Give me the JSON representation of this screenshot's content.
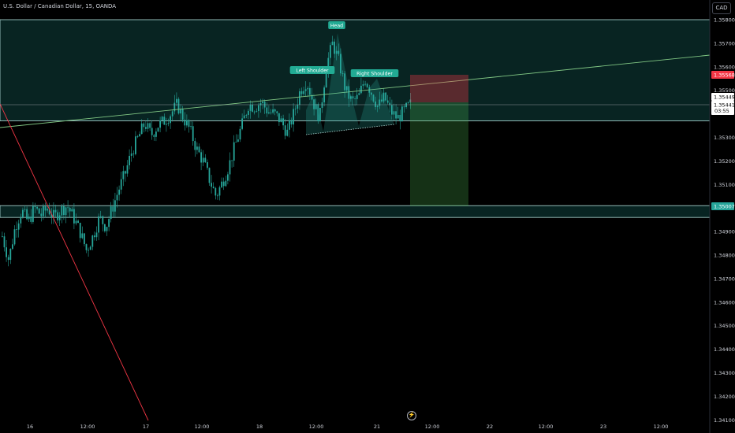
{
  "header": {
    "symbol_title": "U.S. Dollar / Canadian Dollar, 15, OANDA",
    "currency_button": "CAD"
  },
  "colors": {
    "background": "#000000",
    "candle": "#26a69a",
    "zone_fill": "#26a69a",
    "zone_border": "#b2dfdb",
    "trendline_up": "#81c784",
    "trendline_down": "#f23645",
    "stop_fill": "#f23645",
    "target_fill": "#4caf50",
    "stop_label": "#f23645",
    "target_label": "#26a69a",
    "current_label": "#ffffff"
  },
  "chart_data": {
    "type": "candlestick",
    "y_axis": {
      "range": [
        1.341,
        1.3585
      ],
      "ticks": [
        "1.35800",
        "1.35700",
        "1.35600",
        "1.35500",
        "1.35300",
        "1.35200",
        "1.35100",
        "1.34900",
        "1.34800",
        "1.34700",
        "1.34600",
        "1.34500",
        "1.34400",
        "1.34300",
        "1.34200",
        "1.34100"
      ],
      "price_labels": {
        "stop": "1.35568",
        "entry": "1.35449",
        "current_price": "1.35441",
        "countdown": "03:55",
        "target": "1.35007"
      }
    },
    "x_axis": {
      "ticks": [
        "16",
        "12:00",
        "17",
        "12:00",
        "18",
        "12:00",
        "21",
        "12:00",
        "22",
        "12:00",
        "23",
        "12:00"
      ]
    },
    "zones": [
      {
        "name": "resistance",
        "top": 1.358,
        "bottom": 1.3537
      },
      {
        "name": "support",
        "top": 1.3501,
        "bottom": 1.3496
      }
    ],
    "annotations": [
      "Left Shoulder",
      "Head",
      "Right Shoulder"
    ],
    "path": [
      1.3488,
      1.3478,
      1.3492,
      1.3499,
      1.3494,
      1.35,
      1.3497,
      1.35,
      1.3496,
      1.3499,
      1.3501,
      1.3496,
      1.349,
      1.3482,
      1.3488,
      1.3496,
      1.3492,
      1.35,
      1.3508,
      1.3515,
      1.3524,
      1.353,
      1.3536,
      1.3531,
      1.3535,
      1.3537,
      1.354,
      1.3544,
      1.3538,
      1.3533,
      1.3525,
      1.352,
      1.3512,
      1.3505,
      1.3511,
      1.3518,
      1.3527,
      1.3535,
      1.3544,
      1.3543,
      1.3545,
      1.3541,
      1.354,
      1.3537,
      1.3532,
      1.354,
      1.355,
      1.3554,
      1.3545,
      1.3538,
      1.356,
      1.357,
      1.3562,
      1.355,
      1.3545,
      1.3547,
      1.3555,
      1.3549,
      1.3543,
      1.3547,
      1.3541,
      1.3538,
      1.3541,
      1.3544
    ]
  }
}
